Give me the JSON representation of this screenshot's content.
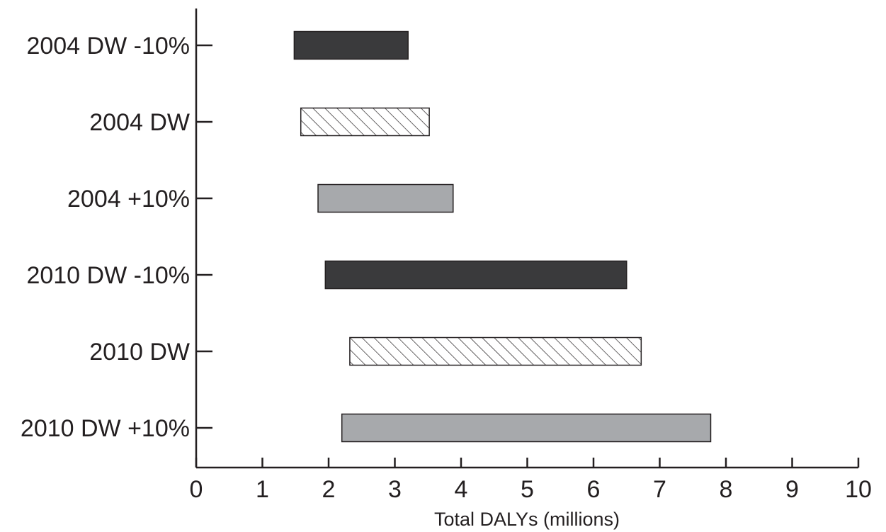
{
  "chart_data": {
    "type": "bar",
    "orientation": "horizontal",
    "subtype": "floating-range",
    "title": "",
    "xlabel": "Total DALYs (millions)",
    "ylabel": "",
    "xlim": [
      0,
      10
    ],
    "xticks": [
      "0",
      "1",
      "2",
      "3",
      "4",
      "5",
      "6",
      "7",
      "8",
      "9",
      "10"
    ],
    "grid": false,
    "legend": "none",
    "categories": [
      "2004 DW -10%",
      "2004 DW",
      "2004 +10%",
      "2010 DW -10%",
      "2010 DW",
      "2010 DW +10%"
    ],
    "ranges": [
      {
        "label": "2004 DW -10%",
        "low": 1.48,
        "high": 3.2,
        "style": "dark"
      },
      {
        "label": "2004 DW",
        "low": 1.58,
        "high": 3.52,
        "style": "hatched"
      },
      {
        "label": "2004 +10%",
        "low": 1.84,
        "high": 3.88,
        "style": "gray"
      },
      {
        "label": "2010 DW -10%",
        "low": 1.95,
        "high": 6.5,
        "style": "dark"
      },
      {
        "label": "2010 DW",
        "low": 2.32,
        "high": 6.72,
        "style": "hatched"
      },
      {
        "label": "2010 DW +10%",
        "low": 2.2,
        "high": 7.77,
        "style": "gray"
      }
    ],
    "colors": {
      "dark": "#3a3a3c",
      "gray": "#a7a9ac",
      "hatched": "#ffffff",
      "axis": "#231f20"
    }
  }
}
